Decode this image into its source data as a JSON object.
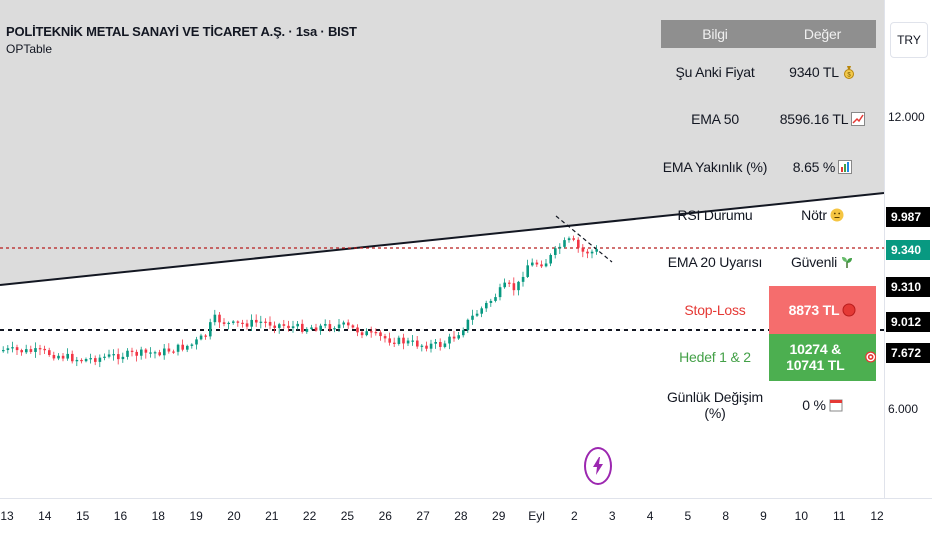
{
  "header": {
    "symbol_title": "POLİTEKNİK METAL SANAYİ VE TİCARET A.Ş. · 1sa · BIST",
    "indicator_name": "OPTable"
  },
  "price_axis": {
    "currency": "TRY",
    "ticks": [
      "12.000",
      "6.000"
    ],
    "tags": [
      {
        "label": "9.987",
        "color": "#000000"
      },
      {
        "label": "9.340",
        "color": "#089981"
      },
      {
        "label": "9.310",
        "color": "#000000"
      },
      {
        "label": "9.012",
        "color": "#000000"
      },
      {
        "label": "7.672",
        "color": "#000000"
      }
    ]
  },
  "time_axis": {
    "labels": [
      "13",
      "14",
      "15",
      "16",
      "18",
      "19",
      "20",
      "21",
      "22",
      "25",
      "26",
      "27",
      "28",
      "29",
      "Eyl",
      "2",
      "3",
      "4",
      "5",
      "8",
      "9",
      "10",
      "11",
      "12"
    ]
  },
  "info_table": {
    "header": {
      "col1": "Bilgi",
      "col2": "Değer"
    },
    "rows": [
      {
        "label": "Şu Anki Fiyat",
        "value": "9340 TL",
        "icon": "money-bag-icon"
      },
      {
        "label": "EMA 50",
        "value": "8596.16 TL",
        "icon": "chart-up-icon"
      },
      {
        "label": "EMA Yakınlık (%)",
        "value": "8.65 %",
        "icon": "bar-chart-icon"
      },
      {
        "label": "RSI Durumu",
        "value": "Nötr",
        "icon": "neutral-face-icon"
      },
      {
        "label": "EMA 20 Uyarısı",
        "value": "Güvenli",
        "icon": "seedling-icon"
      },
      {
        "label": "Stop-Loss",
        "value": "8873 TL",
        "icon": "red-circle-icon"
      },
      {
        "label": "Hedef 1 & 2",
        "value": "10274 & 10741 TL",
        "icon": "target-icon"
      },
      {
        "label": "Günlük Değişim (%)",
        "value": "0 %",
        "icon": "calendar-icon"
      }
    ]
  },
  "colors": {
    "up_candle": "#089981",
    "down_candle": "#f23645",
    "stop_bg": "#f56d6d",
    "target_bg": "#4caf50",
    "table_header_bg": "#8f8f8f",
    "shaded_zone": "#dcdcdc"
  }
}
